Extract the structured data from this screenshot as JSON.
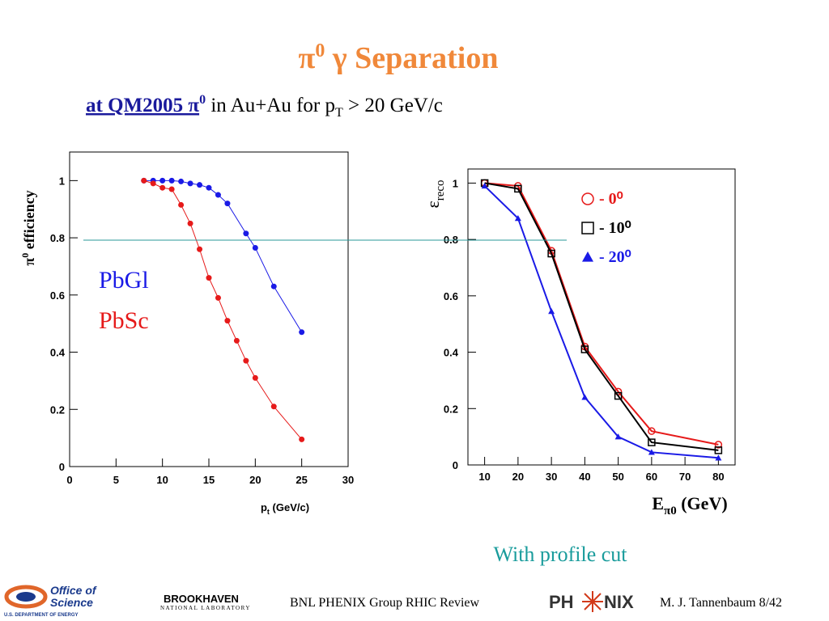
{
  "slide": {
    "title": {
      "a": "π",
      "sup": "0",
      "b": " γ Separation"
    },
    "subtitle": {
      "a": "at QM2005 π",
      "sup": "0",
      "b": " in Au+Au for p",
      "sub": "T",
      "c": " > 20 GeV/c"
    },
    "note": "With profile cut",
    "footer": {
      "center": "BNL PHENIX Group  RHIC Review",
      "right": "M. J. Tannenbaum   8/42",
      "logo1": [
        "Office of",
        "Science",
        "U.S. DEPARTMENT OF ENERGY"
      ],
      "logo2": [
        "BROOKHAVEN",
        "NATIONAL LABORATORY"
      ],
      "logo3": [
        "PH",
        "NIX"
      ]
    }
  },
  "chart_data": [
    {
      "type": "line",
      "xlabel": {
        "a": "p",
        "sub": "t",
        "b": " (GeV/c)"
      },
      "ylabel": {
        "a": "π",
        "sup": "0",
        "b": " efficiency"
      },
      "xlim": [
        0,
        30
      ],
      "xticks": [
        0,
        5,
        10,
        15,
        20,
        25,
        30
      ],
      "ylim": [
        0,
        1.1
      ],
      "yticks": [
        0,
        0.2,
        0.4,
        0.6,
        0.8,
        1
      ],
      "series": [
        {
          "name": "PbGl",
          "color": "#1a1ae6",
          "marker": "dot",
          "x": [
            8,
            9,
            10,
            11,
            12,
            13,
            14,
            15,
            16,
            17,
            19,
            20,
            22,
            25
          ],
          "values": [
            1.0,
            1.0,
            1.0,
            1.0,
            0.997,
            0.99,
            0.985,
            0.975,
            0.95,
            0.92,
            0.815,
            0.765,
            0.63,
            0.47
          ]
        },
        {
          "name": "PbSc",
          "color": "#e61a1a",
          "marker": "dot",
          "x": [
            8,
            9,
            10,
            11,
            12,
            13,
            14,
            15,
            16,
            17,
            18,
            19,
            20,
            22,
            25
          ],
          "values": [
            1.0,
            0.99,
            0.975,
            0.97,
            0.915,
            0.85,
            0.76,
            0.66,
            0.59,
            0.51,
            0.44,
            0.37,
            0.31,
            0.21,
            0.095
          ]
        }
      ]
    },
    {
      "type": "line",
      "xlabel": {
        "a": "E",
        "sub": "π0",
        "b": " (GeV)"
      },
      "ylabel": {
        "a": "ε",
        "sub": "reco"
      },
      "xlim": [
        5,
        85
      ],
      "xticks": [
        10,
        20,
        30,
        40,
        50,
        60,
        70,
        80
      ],
      "ylim": [
        0,
        1.05
      ],
      "yticks": [
        0,
        0.2,
        0.4,
        0.6,
        0.8,
        1
      ],
      "x": [
        10,
        20,
        30,
        40,
        50,
        60,
        80
      ],
      "series": [
        {
          "name": "- 0⁰",
          "color": "#e61a1a",
          "marker": "circle",
          "values": [
            1.0,
            0.99,
            0.76,
            0.42,
            0.26,
            0.12,
            0.072
          ]
        },
        {
          "name": "- 10⁰",
          "color": "#000000",
          "marker": "square",
          "values": [
            1.0,
            0.98,
            0.75,
            0.41,
            0.245,
            0.08,
            0.052
          ]
        },
        {
          "name": "- 20⁰",
          "color": "#1a1ae6",
          "marker": "triangle",
          "values": [
            0.99,
            0.875,
            0.545,
            0.24,
            0.1,
            0.045,
            0.025
          ]
        }
      ]
    }
  ]
}
